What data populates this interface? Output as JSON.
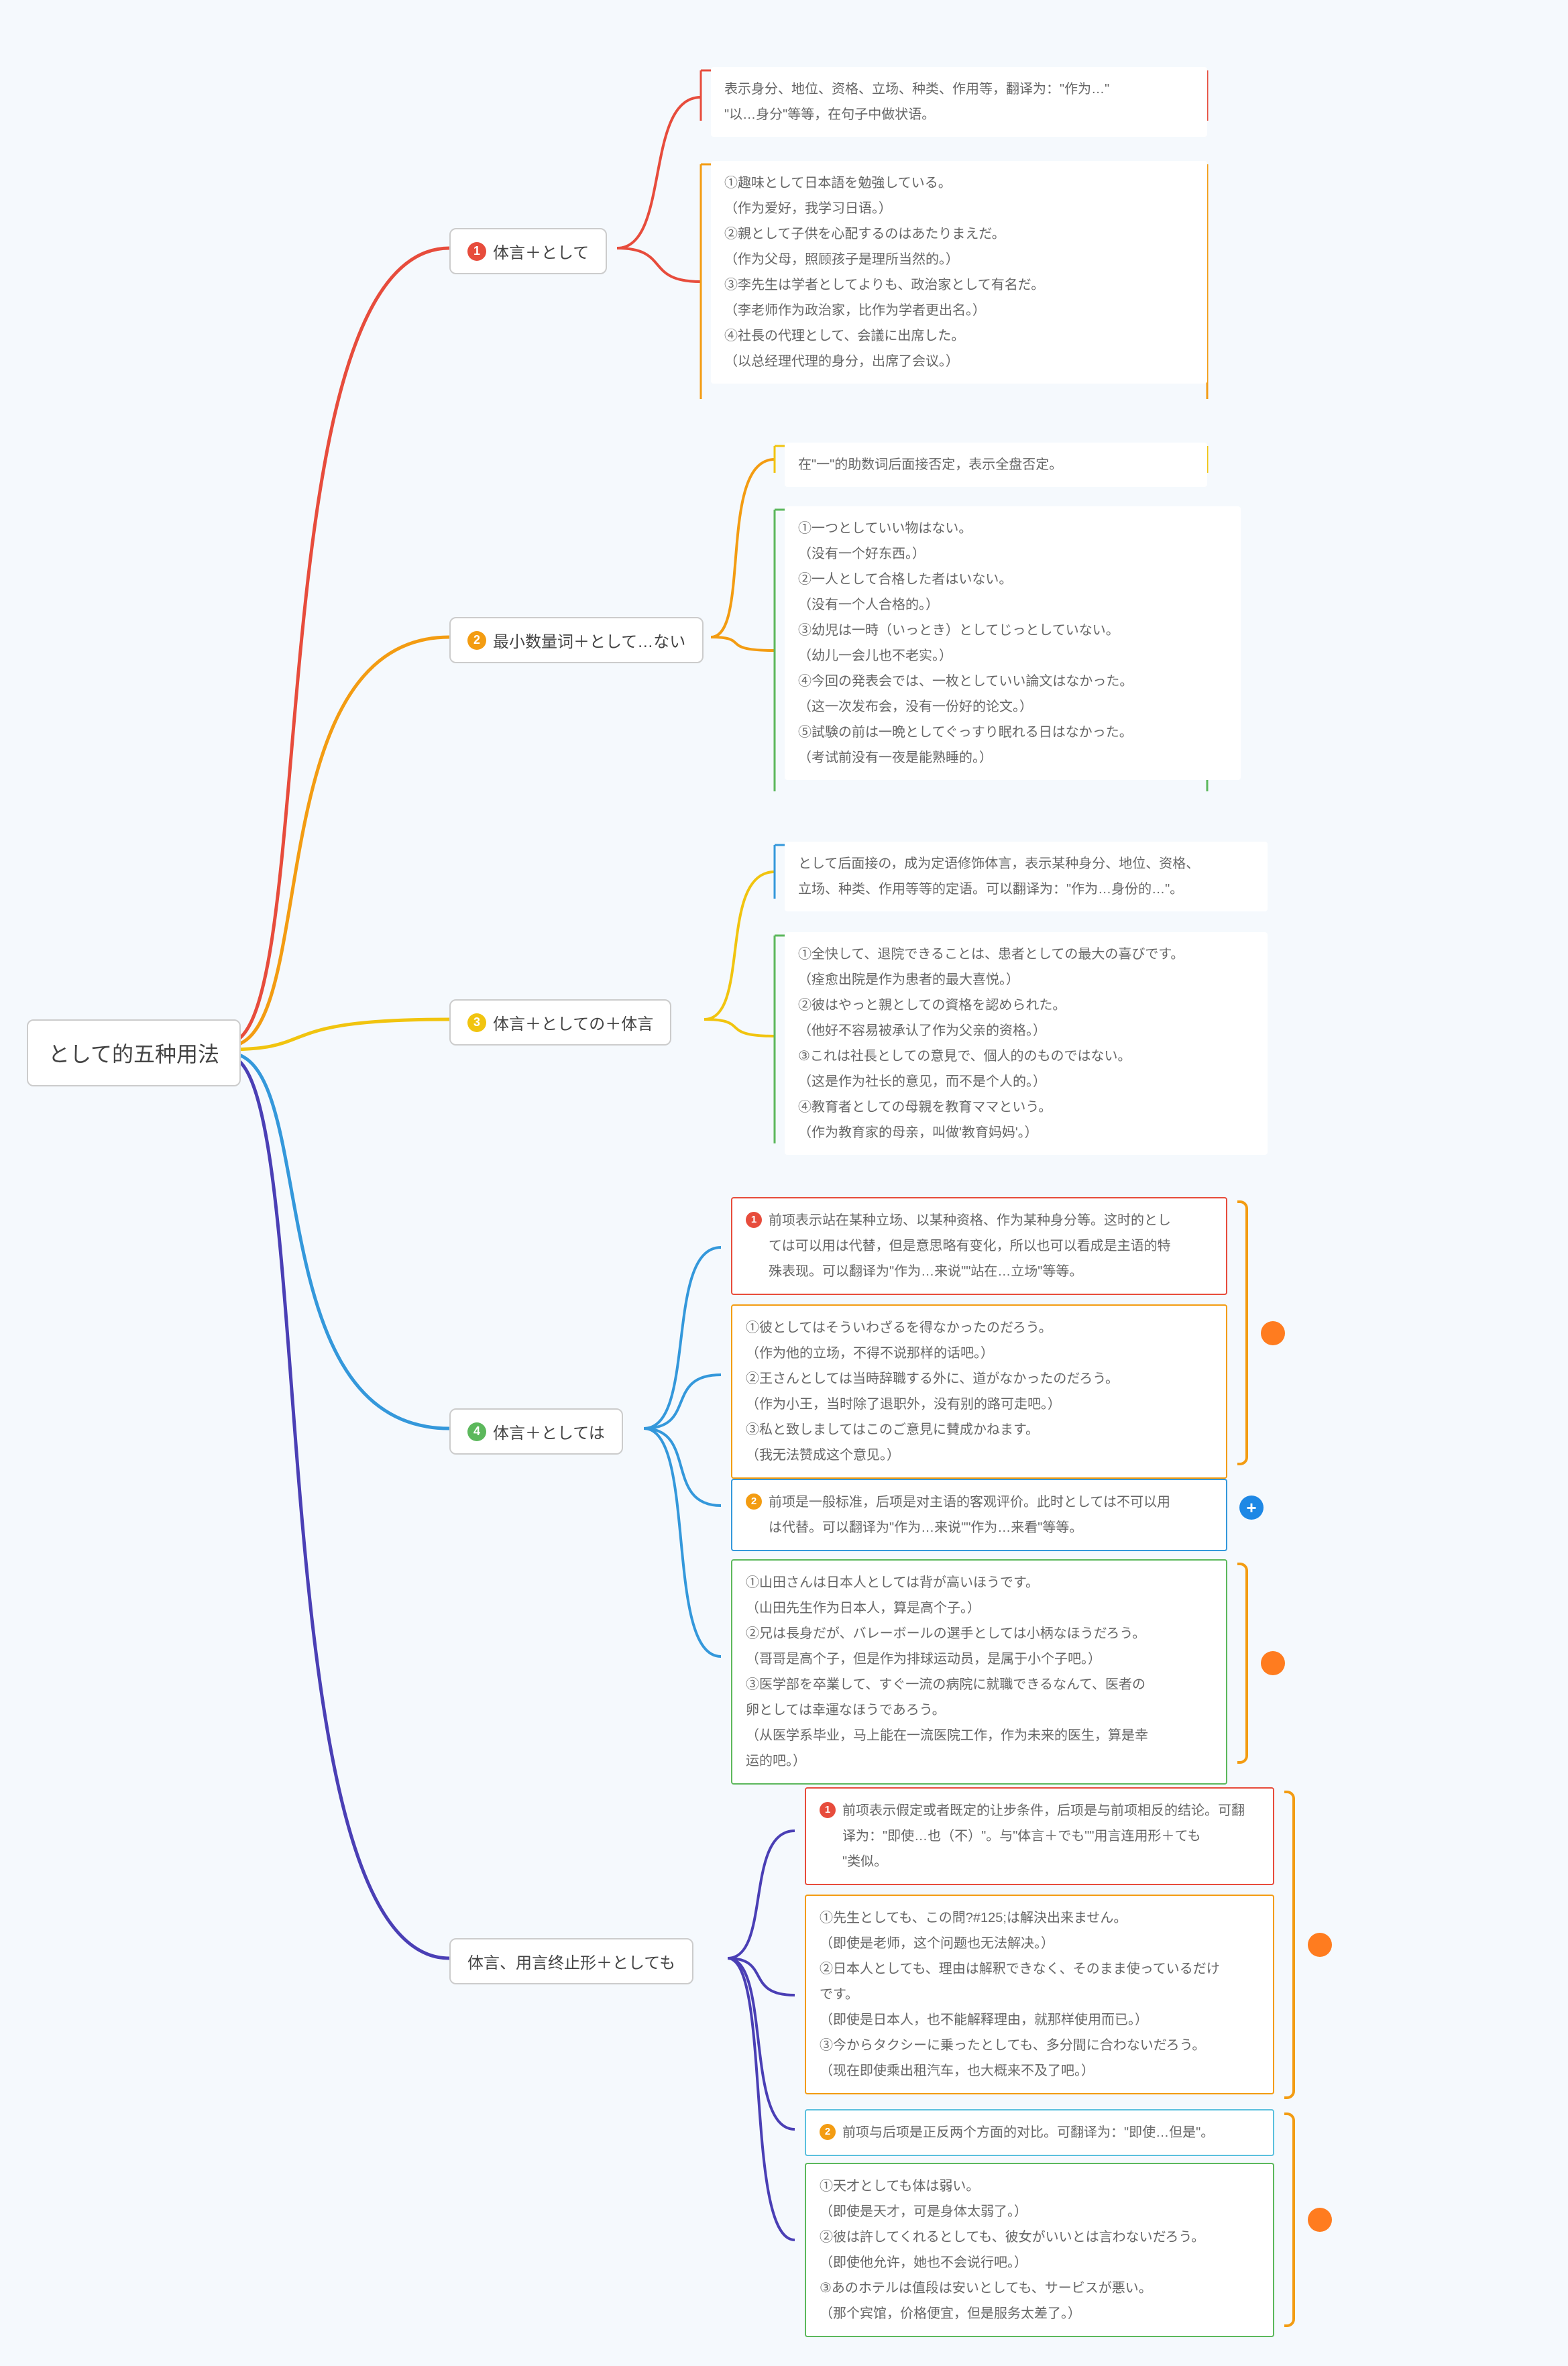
{
  "colors": {
    "red": "#e74c3c",
    "orange": "#f39c12",
    "yellow": "#f1c40f",
    "green": "#5cb85c",
    "blue": "#3498db",
    "lightblue": "#5bc0de",
    "indigo": "#4a3fb5",
    "dot": "#ff7c1f",
    "plus": "#1e88e5",
    "bg": "#f5f9fd"
  },
  "root": "として的五种用法",
  "branches": [
    {
      "num": "1",
      "label": "体言＋として",
      "color": "red"
    },
    {
      "num": "2",
      "label": "最小数量词＋として…ない",
      "color": "orange"
    },
    {
      "num": "3",
      "label": "体言＋としての＋体言",
      "color": "yellow"
    },
    {
      "num": "4",
      "label": "体言＋としては",
      "color": "green"
    },
    {
      "num": null,
      "label": "体言、用言终止形＋としても",
      "color": "indigo"
    }
  ],
  "leaves": {
    "b1_desc": "表示身分、地位、资格、立场、种类、作用等，翻译为：\"作为…\"\n\"以…身分\"等等，在句子中做状语。",
    "b1_ex": "①趣味として日本語を勉強している。\n（作为爱好，我学习日语。）\n②親として子供を心配するのはあたりまえだ。\n（作为父母，照顾孩子是理所当然的。）\n③李先生は学者としてよりも、政治家として有名だ。\n（李老师作为政治家，比作为学者更出名。）\n④社長の代理として、会議に出席した。\n（以总经理代理的身分，出席了会议。）",
    "b2_desc": "在\"一\"的助数词后面接否定，表示全盘否定。",
    "b2_ex": "①一つとしていい物はない。\n（没有一个好东西。）\n②一人として合格した者はいない。\n（没有一个人合格的。）\n③幼児は一時（いっとき）としてじっとしていない。\n（幼儿一会儿也不老实。）\n④今回の発表会では、一枚としていい論文はなかった。\n（这一次发布会，没有一份好的论文。）\n⑤試験の前は一晩としてぐっすり眠れる日はなかった。\n（考试前没有一夜是能熟睡的。）",
    "b3_desc": "として后面接の，成为定语修饰体言，表示某种身分、地位、资格、\n立场、种类、作用等等的定语。可以翻译为：\"作为…身份的…\"。",
    "b3_ex": "①全快して、退院できることは、患者としての最大の喜びです。\n（痊愈出院是作为患者的最大喜悦。）\n②彼はやっと親としての資格を認められた。\n（他好不容易被承认了作为父亲的资格。）\n③これは社長としての意見で、個人的のものではない。\n（这是作为社长的意见，而不是个人的。）\n④教育者としての母親を教育ママという。\n（作为教育家的母亲，叫做'教育妈妈'。）",
    "b4_sub1_desc_num": "1",
    "b4_sub1_desc": "前项表示站在某种立场、以某种资格、作为某种身分等。这时的とし\nては可以用は代替，但是意思略有变化，所以也可以看成是主语的特\n殊表现。可以翻译为\"作为…来说\"\"站在…立场\"等等。",
    "b4_sub1_ex": "①彼としてはそういわざるを得なかったのだろう。\n（作为他的立场，不得不说那样的话吧。）\n②王さんとしては当時辞職する外に、道がなかったのだろう。\n（作为小王，当时除了退职外，没有别的路可走吧。）\n③私と致しましてはこのご意見に賛成かねます。\n（我无法赞成这个意见。）",
    "b4_sub2_desc_num": "2",
    "b4_sub2_desc": "前项是一般标准，后项是对主语的客观评价。此时としては不可以用\nは代替。可以翻译为\"作为…来说\"\"作为…来看\"等等。",
    "b4_sub2_ex": "①山田さんは日本人としては背が高いほうです。\n（山田先生作为日本人，算是高个子。）\n②兄は長身だが、バレーボールの選手としては小柄なほうだろう。\n（哥哥是高个子，但是作为排球运动员，是属于小个子吧。）\n③医学部を卒業して、すぐ一流の病院に就職できるなんて、医者の\n卵としては幸運なほうであろう。\n（从医学系毕业，马上能在一流医院工作，作为未来的医生，算是幸\n运的吧。）",
    "b5_sub1_desc_num": "1",
    "b5_sub1_desc": "前项表示假定或者既定的让步条件，后项是与前项相反的结论。可翻\n译为：\"即使…也（不）\"。与\"体言＋でも\"\"用言连用形＋ても\n\"类似。",
    "b5_sub1_ex": "①先生としても、この問?#125;は解決出来ません。\n（即使是老师，这个问题也无法解决。）\n②日本人としても、理由は解釈できなく、そのまま使っているだけ\nです。\n（即使是日本人，也不能解释理由，就那样使用而已。）\n③今からタクシーに乗ったとしても、多分間に合わないだろう。\n（现在即使乘出租汽车，也大概来不及了吧。）",
    "b5_sub2_desc_num": "2",
    "b5_sub2_desc": "前项与后项是正反两个方面的对比。可翻译为：\"即使…但是\"。",
    "b5_sub2_ex": "①天才としても体は弱い。\n（即使是天才，可是身体太弱了。）\n②彼は許してくれるとしても、彼女がいいとは言わないだろう。\n（即使他允许，她也不会说行吧。）\n③あのホテルは值段は安いとしても、サービスが悪い。\n（那个宾馆，价格便宜，但是服务太差了。）"
  }
}
